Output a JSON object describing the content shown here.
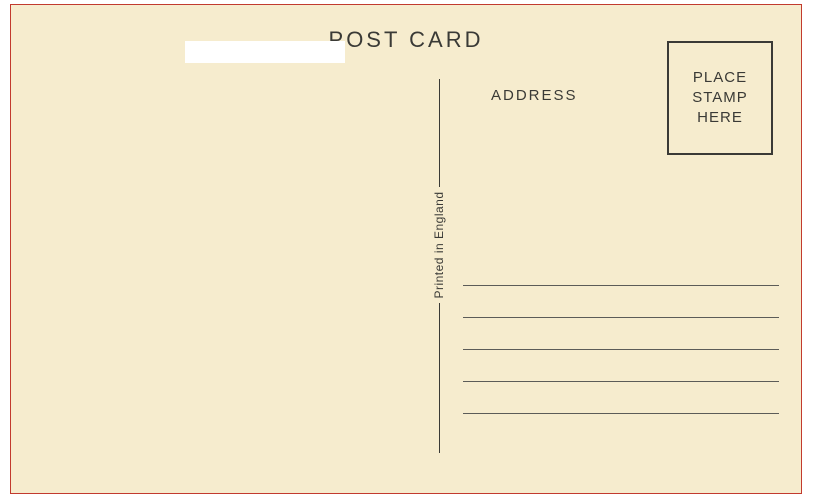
{
  "colors": {
    "card_bg": "#f6ecce",
    "border": "#c23a2e",
    "ink": "#3a3a36",
    "line": "#5c5c58"
  },
  "title": "POST CARD",
  "address_label": "ADDRESS",
  "stamp": {
    "line1": "PLACE",
    "line2": "STAMP",
    "line3": "HERE"
  },
  "printed_text": "Printed in England",
  "address_line_count": 5
}
